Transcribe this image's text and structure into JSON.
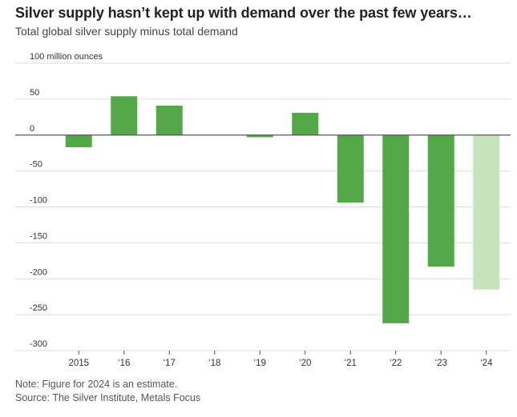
{
  "header": {
    "title": "Silver supply hasn’t kept up with demand over the past few years…",
    "subtitle": "Total global silver supply minus total demand"
  },
  "footer": {
    "note": "Note: Figure for 2024 is an estimate.",
    "source": "Source: The Silver Institute, Metals Focus"
  },
  "colors": {
    "bar": "#55a84a",
    "bar_estimate": "#c6e5bd"
  },
  "chart_data": {
    "type": "bar",
    "title": "Silver supply hasn’t kept up with demand over the past few years…",
    "subtitle": "Total global silver supply minus total demand",
    "xlabel": "",
    "ylabel": "",
    "unit_label": "100 million ounces",
    "categories": [
      "2015",
      "‘16",
      "‘17",
      "‘18",
      "‘19",
      "‘20",
      "‘21",
      "‘22",
      "‘23",
      "‘24"
    ],
    "values": [
      -17,
      54,
      41,
      0,
      -3,
      31,
      -94,
      -262,
      -183,
      -215
    ],
    "estimated": [
      false,
      false,
      false,
      false,
      false,
      false,
      false,
      false,
      false,
      true
    ],
    "ylim": [
      -300,
      100
    ],
    "yticks": [
      100,
      50,
      0,
      -50,
      -100,
      -150,
      -200,
      -250,
      -300
    ],
    "ytick_labels": [
      "100 million ounces",
      "50",
      "0",
      "-50",
      "-100",
      "-150",
      "-200",
      "-250",
      "-300"
    ],
    "grid": true
  }
}
